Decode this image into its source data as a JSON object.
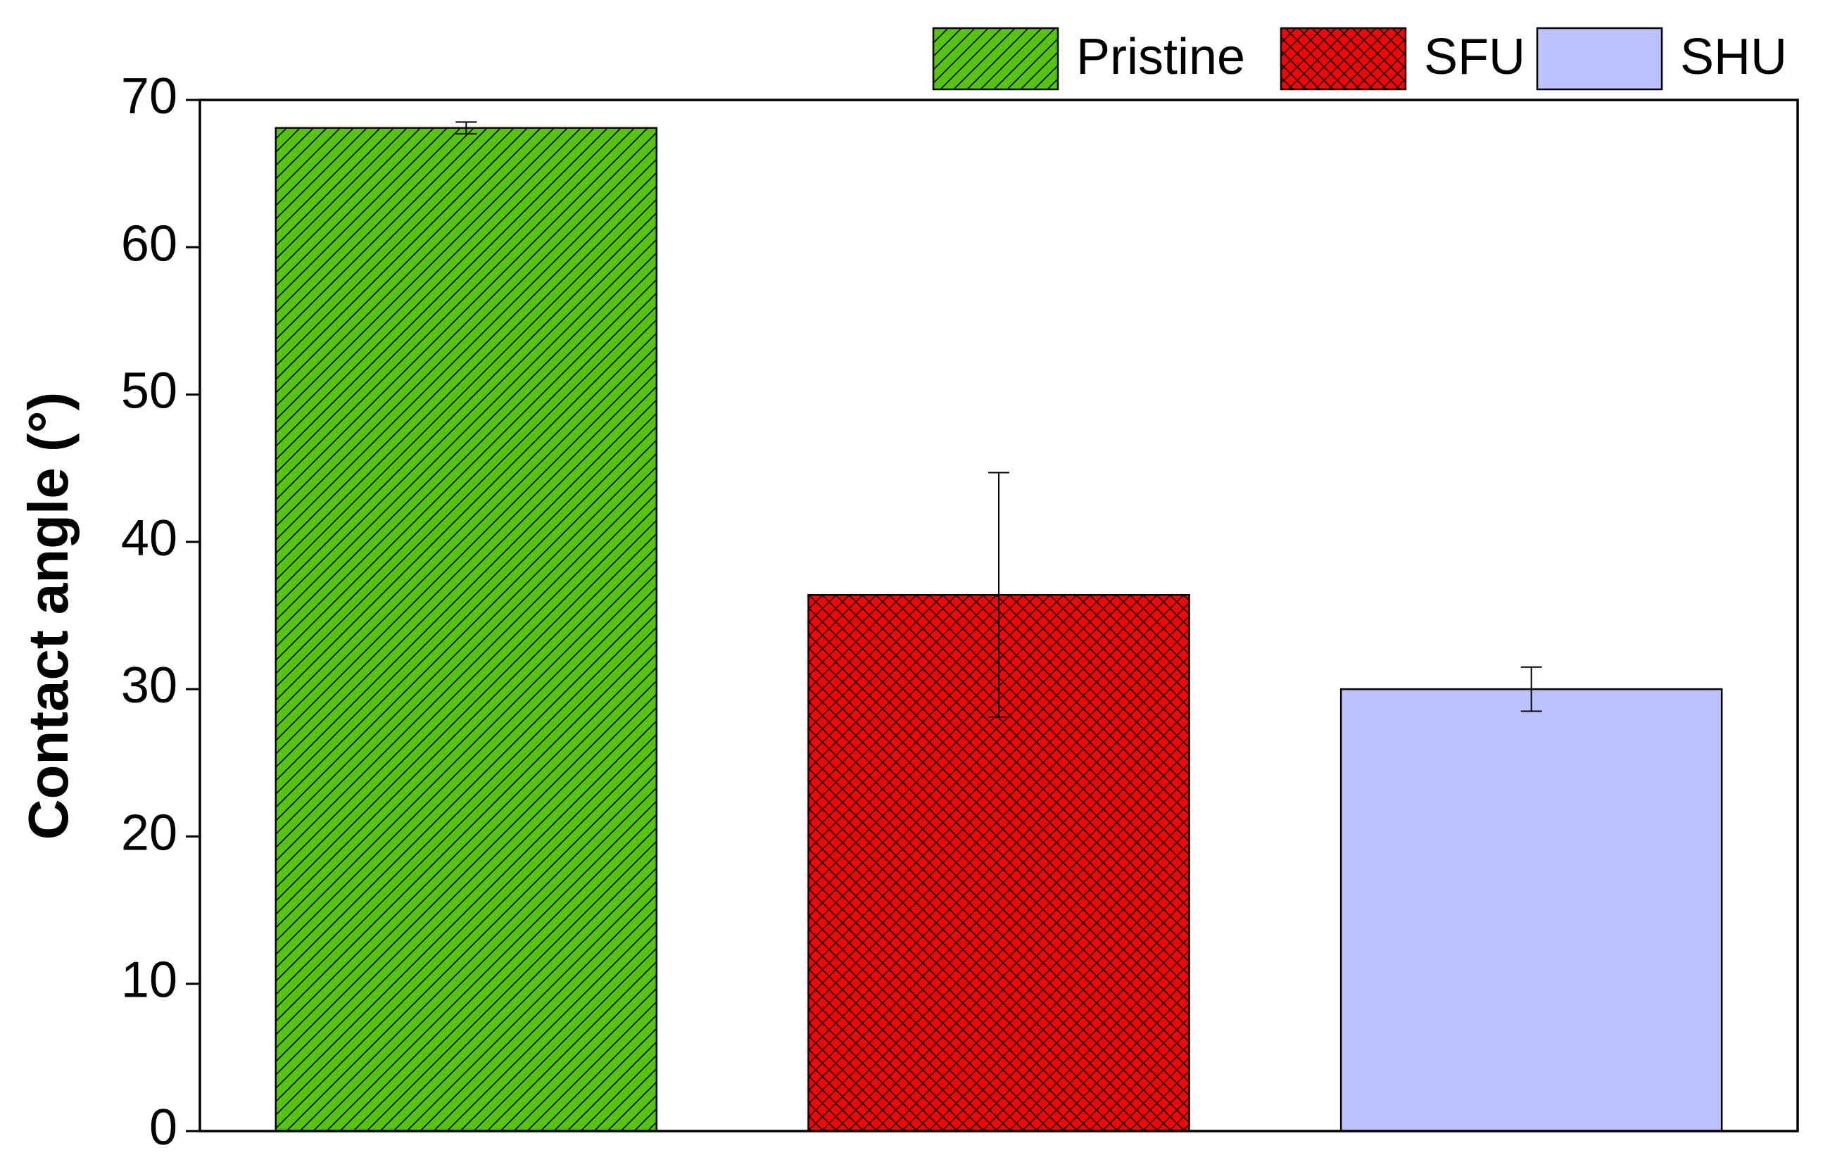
{
  "chart_data": {
    "type": "bar",
    "ylabel": "Contact angle (°)",
    "ylim": [
      0,
      70
    ],
    "yticks": [
      0,
      10,
      20,
      30,
      40,
      50,
      60,
      70
    ],
    "legend": "top-right",
    "series": [
      {
        "name": "Pristine",
        "color": "#55c40a",
        "pattern": "hatch",
        "values": [
          68.1
        ],
        "errors": [
          0.4
        ]
      },
      {
        "name": "SFU",
        "color": "#ff0000",
        "pattern": "crosshatch",
        "values": [
          36.4
        ],
        "errors": [
          8.3
        ]
      },
      {
        "name": "SHU",
        "color": "#bbc2ff",
        "pattern": "none",
        "values": [
          30.0
        ],
        "errors": [
          1.5
        ]
      }
    ]
  }
}
